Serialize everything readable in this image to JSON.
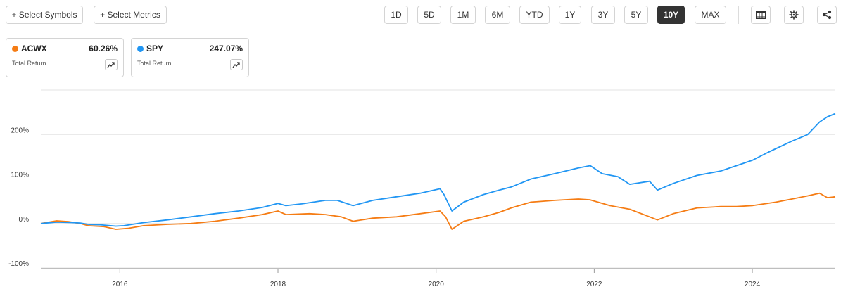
{
  "toolbar": {
    "select_symbols": "+ Select Symbols",
    "select_metrics": "+ Select Metrics",
    "ranges": [
      "1D",
      "5D",
      "1M",
      "6M",
      "YTD",
      "1Y",
      "3Y",
      "5Y",
      "10Y",
      "MAX"
    ],
    "active_range": "10Y",
    "icons": [
      "table-icon",
      "gear-icon",
      "share-icon"
    ]
  },
  "cards": [
    {
      "symbol": "ACWX",
      "value": "60.26%",
      "metric": "Total Return",
      "color": "#f57c14"
    },
    {
      "symbol": "SPY",
      "value": "247.07%",
      "metric": "Total Return",
      "color": "#2196f3"
    }
  ],
  "chart_data": {
    "type": "line",
    "title": "",
    "xlabel": "",
    "ylabel": "",
    "x_ticks": [
      "2016",
      "2018",
      "2020",
      "2022",
      "2024"
    ],
    "y_ticks": [
      "-100%",
      "0%",
      "100%",
      "200%"
    ],
    "xlim": [
      2015.0,
      2025.05
    ],
    "ylim": [
      -100,
      300
    ],
    "grid": true,
    "legend": "cards-top-left",
    "series": [
      {
        "name": "SPY",
        "color": "#2196f3",
        "x": [
          2015.0,
          2015.2,
          2015.4,
          2015.5,
          2015.6,
          2015.75,
          2015.95,
          2016.05,
          2016.3,
          2016.6,
          2016.9,
          2017.2,
          2017.5,
          2017.8,
          2018.0,
          2018.1,
          2018.3,
          2018.6,
          2018.75,
          2018.95,
          2019.2,
          2019.5,
          2019.8,
          2020.05,
          2020.1,
          2020.2,
          2020.35,
          2020.6,
          2020.8,
          2020.95,
          2021.2,
          2021.5,
          2021.8,
          2021.95,
          2022.1,
          2022.3,
          2022.45,
          2022.7,
          2022.8,
          2023.0,
          2023.3,
          2023.6,
          2023.8,
          2024.0,
          2024.2,
          2024.5,
          2024.7,
          2024.85,
          2024.95,
          2025.05
        ],
        "y": [
          0,
          3,
          2,
          1,
          -2,
          -3,
          -6,
          -5,
          2,
          8,
          15,
          22,
          28,
          36,
          45,
          40,
          44,
          52,
          52,
          40,
          52,
          60,
          68,
          78,
          65,
          28,
          48,
          65,
          75,
          82,
          100,
          112,
          125,
          130,
          112,
          105,
          88,
          95,
          75,
          90,
          108,
          118,
          130,
          142,
          160,
          185,
          200,
          228,
          240,
          247
        ]
      },
      {
        "name": "ACWX",
        "color": "#f57c14",
        "x": [
          2015.0,
          2015.2,
          2015.35,
          2015.5,
          2015.6,
          2015.8,
          2015.95,
          2016.1,
          2016.3,
          2016.6,
          2016.9,
          2017.2,
          2017.5,
          2017.8,
          2018.0,
          2018.1,
          2018.4,
          2018.6,
          2018.8,
          2018.95,
          2019.2,
          2019.5,
          2019.8,
          2020.05,
          2020.12,
          2020.2,
          2020.35,
          2020.6,
          2020.8,
          2020.95,
          2021.2,
          2021.5,
          2021.8,
          2021.95,
          2022.2,
          2022.45,
          2022.7,
          2022.8,
          2023.0,
          2023.3,
          2023.6,
          2023.8,
          2024.0,
          2024.3,
          2024.5,
          2024.7,
          2024.85,
          2024.95,
          2025.05
        ],
        "y": [
          0,
          6,
          4,
          0,
          -5,
          -7,
          -13,
          -11,
          -5,
          -2,
          0,
          5,
          12,
          20,
          28,
          20,
          22,
          20,
          15,
          5,
          12,
          15,
          22,
          28,
          15,
          -13,
          5,
          15,
          25,
          35,
          48,
          52,
          55,
          53,
          40,
          32,
          15,
          8,
          22,
          35,
          38,
          38,
          40,
          48,
          55,
          62,
          68,
          58,
          60
        ]
      }
    ]
  }
}
